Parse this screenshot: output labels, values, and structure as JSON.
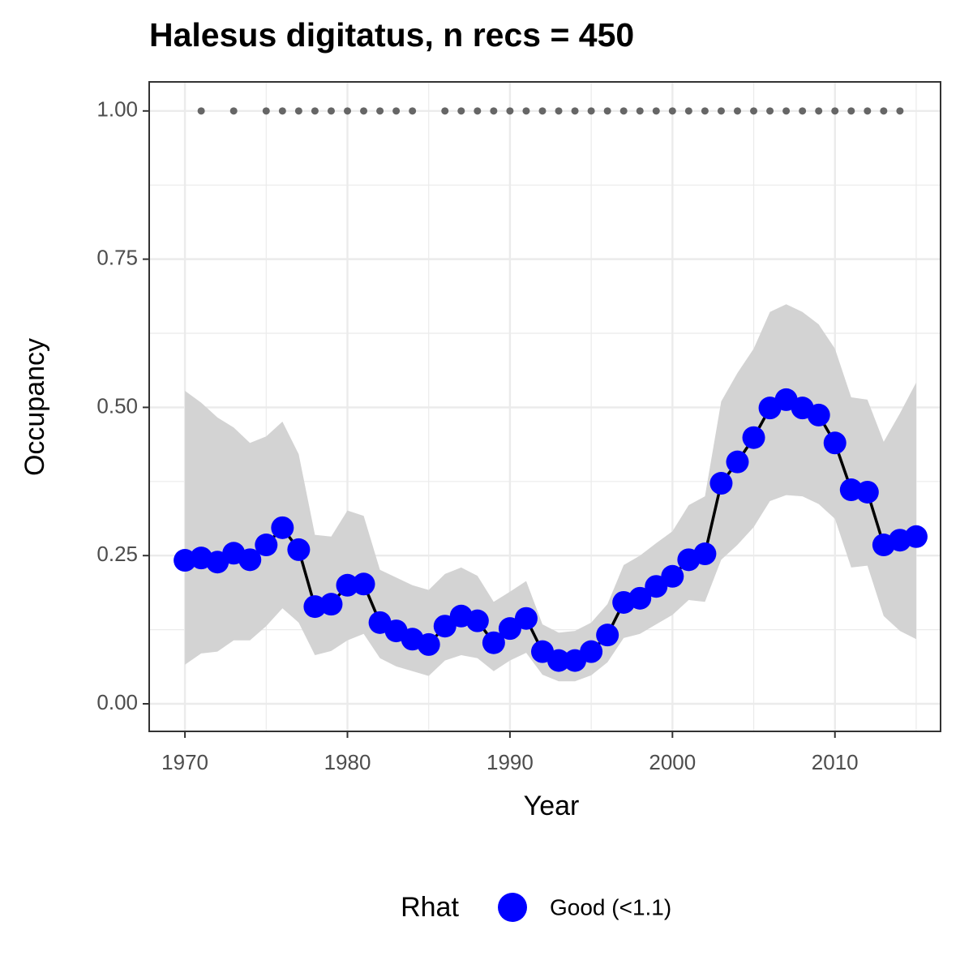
{
  "chart_data": {
    "type": "line",
    "title": "Halesus digitatus, n recs = 450",
    "x_label": "Year",
    "y_label": "Occupancy",
    "legend_title": "Rhat",
    "legend_position": "bottom",
    "grid": true,
    "xlim": [
      1967.8,
      2016.5
    ],
    "ylim": [
      -0.0465,
      1.049
    ],
    "xticks": [
      1970,
      1980,
      1990,
      2000,
      2010
    ],
    "yticks": [
      {
        "value": 0,
        "label": "0.00"
      },
      {
        "value": 0.25,
        "label": "0.25"
      },
      {
        "value": 0.5,
        "label": "0.50"
      },
      {
        "value": 0.75,
        "label": "0.75"
      },
      {
        "value": 1,
        "label": "1.00"
      }
    ],
    "x": [
      1970,
      1971,
      1972,
      1973,
      1974,
      1975,
      1976,
      1977,
      1978,
      1979,
      1980,
      1981,
      1982,
      1983,
      1984,
      1985,
      1986,
      1987,
      1988,
      1989,
      1990,
      1991,
      1992,
      1993,
      1994,
      1995,
      1996,
      1997,
      1998,
      1999,
      2000,
      2001,
      2002,
      2003,
      2004,
      2005,
      2006,
      2007,
      2008,
      2009,
      2010,
      2011,
      2012,
      2013,
      2014,
      2015
    ],
    "series": [
      {
        "name": "Good (<1.1)",
        "color": "#0000ff",
        "line_color": "#000000",
        "band_color": "#d3d3d3",
        "values": [
          0.242,
          0.246,
          0.239,
          0.254,
          0.243,
          0.268,
          0.297,
          0.26,
          0.164,
          0.168,
          0.2,
          0.202,
          0.137,
          0.123,
          0.109,
          0.1,
          0.131,
          0.148,
          0.14,
          0.103,
          0.127,
          0.144,
          0.088,
          0.073,
          0.073,
          0.088,
          0.116,
          0.171,
          0.178,
          0.198,
          0.215,
          0.243,
          0.253,
          0.372,
          0.408,
          0.449,
          0.499,
          0.513,
          0.499,
          0.487,
          0.44,
          0.361,
          0.357,
          0.268,
          0.276,
          0.282
        ],
        "upper": [
          0.528,
          0.508,
          0.483,
          0.466,
          0.44,
          0.451,
          0.476,
          0.421,
          0.285,
          0.282,
          0.326,
          0.317,
          0.226,
          0.213,
          0.2,
          0.192,
          0.219,
          0.23,
          0.216,
          0.172,
          0.189,
          0.207,
          0.134,
          0.12,
          0.123,
          0.137,
          0.168,
          0.234,
          0.25,
          0.271,
          0.291,
          0.335,
          0.35,
          0.51,
          0.558,
          0.599,
          0.661,
          0.674,
          0.661,
          0.64,
          0.599,
          0.517,
          0.513,
          0.442,
          0.49,
          0.542
        ],
        "lower": [
          0.066,
          0.085,
          0.088,
          0.107,
          0.107,
          0.131,
          0.161,
          0.137,
          0.082,
          0.089,
          0.107,
          0.118,
          0.077,
          0.063,
          0.055,
          0.047,
          0.073,
          0.082,
          0.077,
          0.055,
          0.073,
          0.086,
          0.049,
          0.038,
          0.038,
          0.048,
          0.07,
          0.111,
          0.118,
          0.134,
          0.15,
          0.175,
          0.172,
          0.243,
          0.268,
          0.298,
          0.342,
          0.352,
          0.35,
          0.337,
          0.312,
          0.23,
          0.233,
          0.148,
          0.123,
          0.109
        ]
      }
    ],
    "records": {
      "color": "#666666",
      "x": [
        1971,
        1973,
        1975,
        1976,
        1977,
        1978,
        1979,
        1980,
        1981,
        1982,
        1983,
        1984,
        1986,
        1987,
        1988,
        1989,
        1990,
        1991,
        1992,
        1993,
        1994,
        1995,
        1996,
        1997,
        1998,
        1999,
        2000,
        2001,
        2002,
        2003,
        2004,
        2005,
        2006,
        2007,
        2008,
        2009,
        2010,
        2011,
        2012,
        2013,
        2014
      ],
      "values": [
        1,
        1,
        1,
        1,
        1,
        1,
        1,
        1,
        1,
        1,
        1,
        1,
        1,
        1,
        1,
        1,
        1,
        1,
        1,
        1,
        1,
        1,
        1,
        1,
        1,
        1,
        1,
        1,
        1,
        1,
        1,
        1,
        1,
        1,
        1,
        1,
        1,
        1,
        1,
        1,
        1
      ]
    }
  }
}
